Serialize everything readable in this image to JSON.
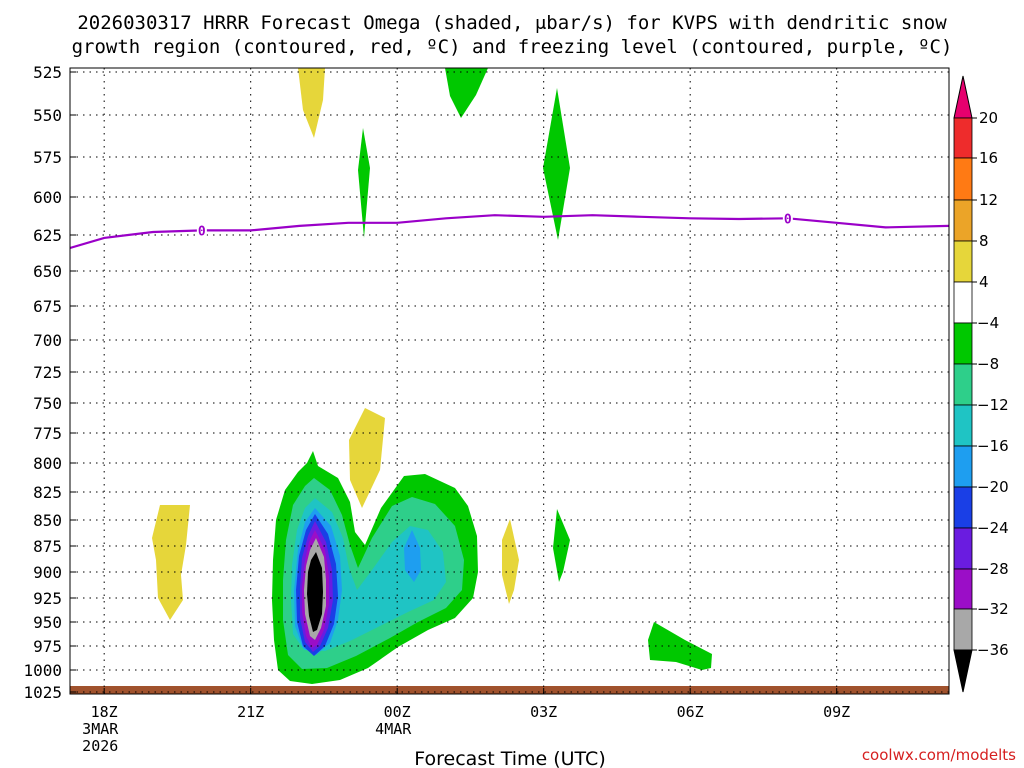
{
  "chart_data": {
    "type": "time-height contour",
    "title_line1": "2026030317 HRRR Forecast Omega (shaded, μbar/s) for KVPS with dendritic snow",
    "title_line2": "growth region (contoured, red, ºC) and freezing level (contoured, purple, ºC)",
    "xlabel": "Forecast Time (UTC)",
    "credit": "coolwx.com/modelts",
    "x_range_hours": [
      -0.7,
      17.3
    ],
    "y_range_hpa": [
      1025,
      525
    ],
    "y_ticks": [
      "525",
      "550",
      "575",
      "600",
      "625",
      "650",
      "675",
      "700",
      "725",
      "750",
      "775",
      "800",
      "825",
      "850",
      "875",
      "900",
      "925",
      "950",
      "975",
      "1000",
      "1025"
    ],
    "x_ticks": [
      {
        "hour": 0,
        "lines": [
          "18Z",
          "3MAR",
          "2026"
        ]
      },
      {
        "hour": 3,
        "lines": [
          "21Z"
        ]
      },
      {
        "hour": 6,
        "lines": [
          "00Z",
          "4MAR"
        ]
      },
      {
        "hour": 9,
        "lines": [
          "03Z"
        ]
      },
      {
        "hour": 12,
        "lines": [
          "06Z"
        ]
      },
      {
        "hour": 15,
        "lines": [
          "09Z"
        ]
      }
    ],
    "colorbar": {
      "labels": [
        "20",
        "16",
        "12",
        "8",
        "4",
        "−4",
        "−8",
        "−12",
        "−16",
        "−20",
        "−24",
        "−28",
        "−32",
        "−36"
      ],
      "colors": [
        "#ee2c2c",
        "#ff6c1a",
        "#ec8a24",
        "#e4a92a",
        "#e6d63a",
        "#ffffff",
        "#00c800",
        "#2ecf8a",
        "#1fc4c4",
        "#1e9ef0",
        "#1a3fe6",
        "#6a1ce0",
        "#9b0ec7",
        "#a8a8a8",
        "#000000"
      ],
      "top_arrow_color": "#e6006e",
      "bottom_arrow_color": "#000000"
    },
    "freezing_level": {
      "label": "0",
      "color": "#9a00c8",
      "points": [
        [
          -0.7,
          634
        ],
        [
          0,
          627
        ],
        [
          1,
          623
        ],
        [
          2,
          622
        ],
        [
          3,
          622
        ],
        [
          4,
          619
        ],
        [
          5,
          617
        ],
        [
          6,
          617
        ],
        [
          7,
          614
        ],
        [
          8,
          612
        ],
        [
          9,
          613
        ],
        [
          10,
          612
        ],
        [
          11,
          613
        ],
        [
          12,
          614
        ],
        [
          13,
          614.5
        ],
        [
          14,
          614
        ],
        [
          15,
          617
        ],
        [
          16,
          620
        ],
        [
          17.3,
          619
        ]
      ],
      "label_hours": [
        2,
        14
      ]
    },
    "ground": {
      "color": "#a0522d",
      "pressure_hpa": 1023
    }
  }
}
